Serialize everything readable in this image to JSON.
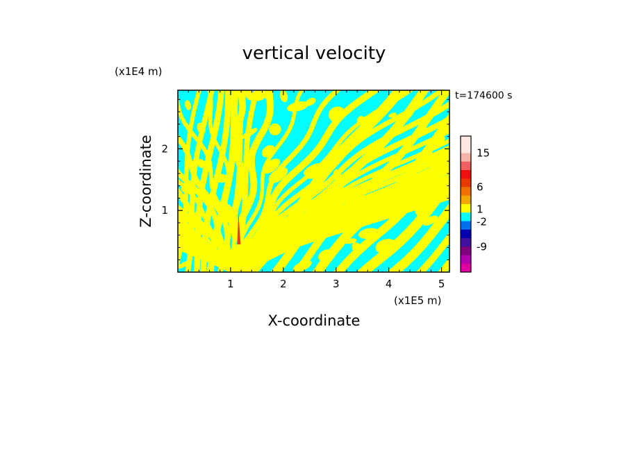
{
  "chart_data": {
    "type": "heatmap",
    "title": "vertical velocity",
    "xlabel": "X-coordinate",
    "ylabel": "Z-coordinate",
    "x_unit": "(x1E5 m)",
    "y_unit": "(x1E4 m)",
    "time_label": "t=174600 s",
    "xlim": [
      0,
      5.15
    ],
    "ylim": [
      0,
      2.95
    ],
    "x_ticks": [
      "1",
      "2",
      "3",
      "4",
      "5"
    ],
    "y_ticks": [
      "1",
      "2"
    ],
    "x_tick_values": [
      1,
      2,
      3,
      4,
      5
    ],
    "y_tick_values": [
      1,
      2
    ],
    "colorbar": {
      "tick_labels": [
        "15",
        "6",
        "1",
        "-2",
        "-9"
      ],
      "levels": [
        {
          "color": "#ffe8e0"
        },
        {
          "color": "#ffe8e0"
        },
        {
          "color": "#f4b4a8"
        },
        {
          "color": "#f06060"
        },
        {
          "color": "#ee1010"
        },
        {
          "color": "#e83a00"
        },
        {
          "color": "#f07000"
        },
        {
          "color": "#f0a800"
        },
        {
          "color": "#ffff00"
        },
        {
          "color": "#00ffff"
        },
        {
          "color": "#0070f0"
        },
        {
          "color": "#0000b0"
        },
        {
          "color": "#4010a0"
        },
        {
          "color": "#800080"
        },
        {
          "color": "#b000b0"
        },
        {
          "color": "#e000a0"
        }
      ]
    },
    "field_colors": {
      "positive": "#ffff00",
      "negative": "#00ffff",
      "strong": "#e04020"
    }
  }
}
